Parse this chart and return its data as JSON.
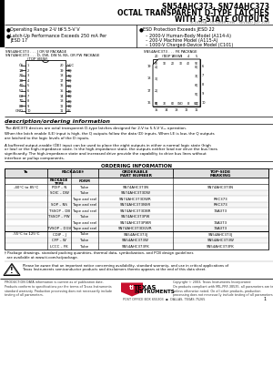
{
  "title_line1": "SN54AHC373, SN74AHC373",
  "title_line2": "OCTAL TRANSPARENT D-TYPE LATCHES",
  "title_line3": "WITH 3-STATE OUTPUTS",
  "subtitle": "SCLS395A – OCTOBER 1996 – REVISED JULY 2003",
  "footer_left": "PRODUCTION DATA information is current as of publication date.\nProducts conform to specifications per the terms of Texas Instruments\nstandard warranty. Production processing does not necessarily include\ntesting of all parameters.",
  "footer_right": "Copyright © 2003, Texas Instruments Incorporated\nOn products compliant with MIL-PRF-38535, all parameters are tested\nunless otherwise noted. On all other products, production\nprocessing does not necessarily include testing of all parameters.",
  "background": "#ffffff"
}
